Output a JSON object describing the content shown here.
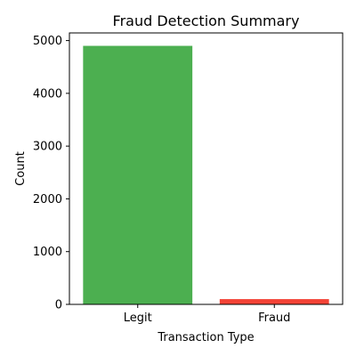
{
  "chart_data": {
    "type": "bar",
    "title": "Fraud Detection Summary",
    "xlabel": "Transaction Type",
    "ylabel": "Count",
    "categories": [
      "Legit",
      "Fraud"
    ],
    "values": [
      4900,
      100
    ],
    "colors": [
      "#4caf50",
      "#f44336"
    ],
    "ylim": [
      0,
      5145
    ],
    "yticks": [
      0,
      1000,
      2000,
      3000,
      4000,
      5000
    ],
    "grid": false,
    "legend": "none"
  }
}
